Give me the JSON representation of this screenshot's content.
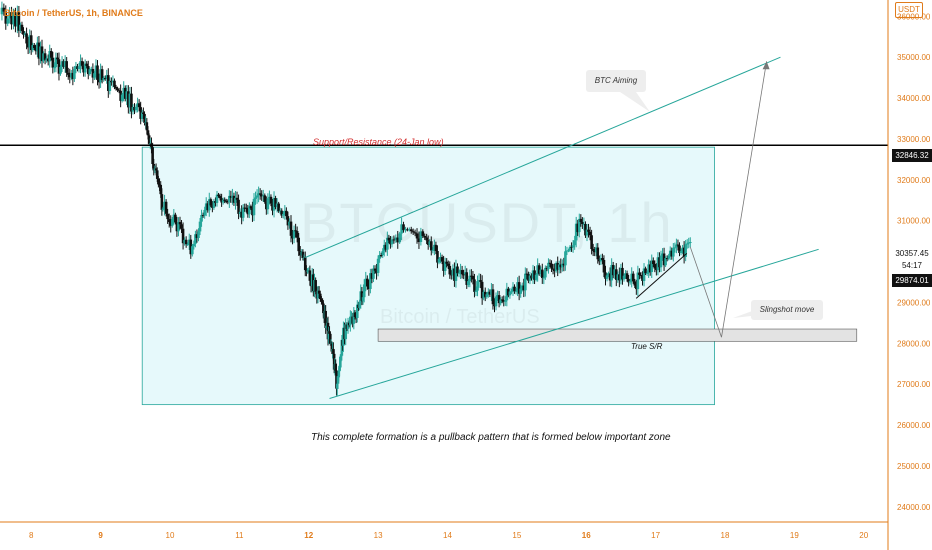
{
  "header": {
    "symbol": "Bitcoin / TetherUS, 1h, BINANCE",
    "currency": "USDT"
  },
  "watermark": {
    "main": "BTCUSDT, 1h",
    "sub": "Bitcoin / TetherUS"
  },
  "annotations": {
    "support_resistance": "Support/Resistance (24-Jan low)",
    "btc_aiming": "BTC Aiming",
    "slingshot": "Slingshot move",
    "true_sr": "True S/R",
    "caption": "This complete formation is a pullback pattern that is formed below important zone"
  },
  "price_tags": {
    "resistance": "32846.32",
    "last_price": "30357.45",
    "countdown": "54:17",
    "low_tag": "29874.01"
  },
  "colors": {
    "up_candle": "#26a69a",
    "down_candle": "#111111",
    "channel": "#26a69a",
    "zone_fill": "#e0f7fa",
    "axis_text": "#e07b1a",
    "resistance_line": "#000000"
  },
  "chart_data": {
    "type": "candlestick",
    "y_axis": {
      "ticks": [
        24000,
        25000,
        26000,
        27000,
        28000,
        29000,
        30000,
        31000,
        32000,
        33000,
        34000,
        35000,
        36000
      ],
      "tick_labels": [
        "24000.00",
        "25000.00",
        "26000.00",
        "27000.00",
        "28000.00",
        "29000.00",
        "30000.00",
        "31000.00",
        "32000.00",
        "33000.00",
        "34000.00",
        "35000.00",
        "36000.00"
      ],
      "ylim": [
        23800,
        36400
      ]
    },
    "x_axis": {
      "ticks": [
        8,
        9,
        10,
        11,
        12,
        13,
        14,
        15,
        16,
        17,
        18,
        19,
        20
      ],
      "tick_labels": [
        "8",
        "9",
        "10",
        "11",
        "12",
        "13",
        "14",
        "15",
        "16",
        "17",
        "18",
        "19",
        "20"
      ],
      "bold_ticks": [
        "9",
        "12",
        "16"
      ],
      "xlim": [
        7.55,
        20.35
      ]
    },
    "series_close": [
      [
        7.55,
        36050
      ],
      [
        7.8,
        35900
      ],
      [
        8.0,
        35300
      ],
      [
        8.2,
        35050
      ],
      [
        8.4,
        34800
      ],
      [
        8.6,
        34650
      ],
      [
        8.8,
        34750
      ],
      [
        9.0,
        34550
      ],
      [
        9.2,
        34250
      ],
      [
        9.4,
        33950
      ],
      [
        9.6,
        33600
      ],
      [
        9.75,
        32500
      ],
      [
        9.9,
        31300
      ],
      [
        10.1,
        30900
      ],
      [
        10.3,
        30300
      ],
      [
        10.5,
        31200
      ],
      [
        10.7,
        31600
      ],
      [
        10.9,
        31400
      ],
      [
        11.1,
        31200
      ],
      [
        11.3,
        31500
      ],
      [
        11.5,
        31350
      ],
      [
        11.7,
        31000
      ],
      [
        11.9,
        30200
      ],
      [
        12.05,
        29500
      ],
      [
        12.2,
        28900
      ],
      [
        12.3,
        28100
      ],
      [
        12.4,
        27100
      ],
      [
        12.5,
        28200
      ],
      [
        12.65,
        28600
      ],
      [
        12.8,
        29300
      ],
      [
        13.0,
        30000
      ],
      [
        13.2,
        30600
      ],
      [
        13.45,
        30800
      ],
      [
        13.7,
        30600
      ],
      [
        13.9,
        30000
      ],
      [
        14.1,
        29700
      ],
      [
        14.3,
        29500
      ],
      [
        14.5,
        29300
      ],
      [
        14.7,
        29050
      ],
      [
        14.9,
        29200
      ],
      [
        15.1,
        29500
      ],
      [
        15.3,
        29700
      ],
      [
        15.5,
        29900
      ],
      [
        15.7,
        30100
      ],
      [
        15.9,
        30900
      ],
      [
        16.1,
        30400
      ],
      [
        16.3,
        29700
      ],
      [
        16.5,
        29750
      ],
      [
        16.7,
        29450
      ],
      [
        16.9,
        29800
      ],
      [
        17.1,
        30050
      ],
      [
        17.3,
        30250
      ],
      [
        17.5,
        30357
      ]
    ],
    "levels": {
      "resistance": 32846.32,
      "true_sr_zone": [
        28050,
        28350
      ],
      "consolidation_zone": {
        "x": [
          9.6,
          17.85
        ],
        "y": [
          26500,
          32800
        ]
      }
    },
    "channel": {
      "upper": [
        [
          11.95,
          30100
        ],
        [
          18.8,
          35000
        ]
      ],
      "lower": [
        [
          12.3,
          26650
        ],
        [
          19.35,
          30300
        ]
      ]
    },
    "projection": [
      [
        17.5,
        30357
      ],
      [
        17.95,
        28150
      ],
      [
        18.6,
        34900
      ]
    ]
  }
}
